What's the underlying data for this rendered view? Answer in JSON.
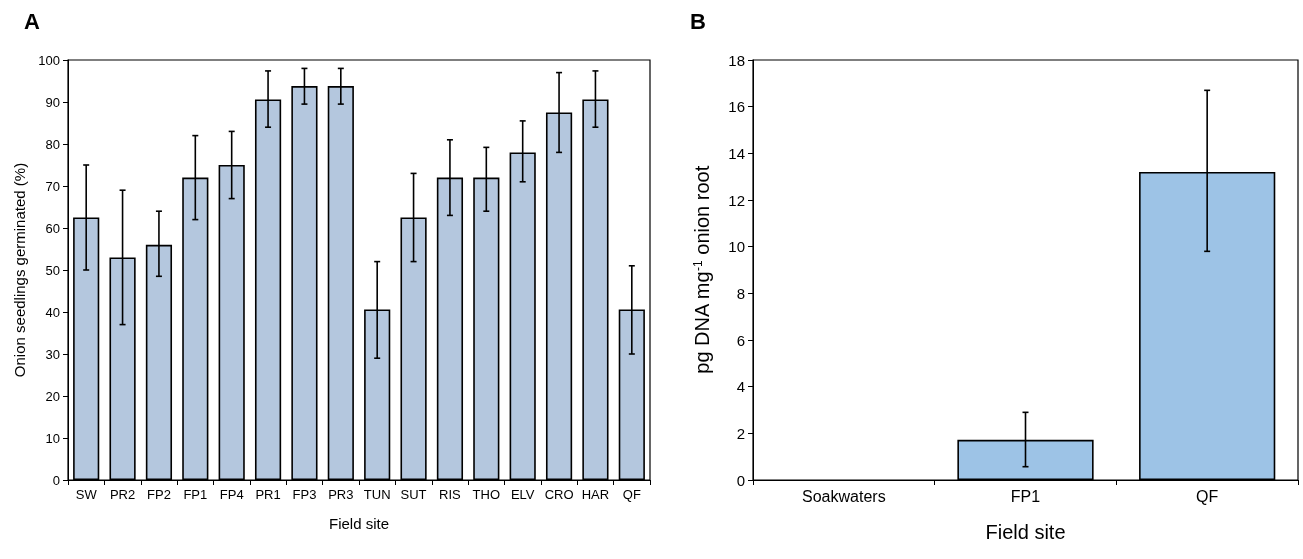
{
  "chart_data": [
    {
      "type": "bar",
      "annotations": [
        "A"
      ],
      "xlabel": "Field site",
      "ylabel": "Onion seedlings germinated (%)",
      "categories": [
        "SW",
        "PR2",
        "FP2",
        "FP1",
        "FP4",
        "PR1",
        "FP3",
        "PR3",
        "TUN",
        "SUT",
        "RIS",
        "THO",
        "ELV",
        "CRO",
        "HAR",
        "QF"
      ],
      "series": [
        {
          "color": "#b4c7de",
          "values": [
            62.5,
            53,
            56,
            72,
            75,
            90.6,
            93.8,
            93.8,
            40.6,
            62.5,
            72,
            72,
            78,
            87.5,
            90.6,
            40.6
          ],
          "errors": [
            [
              50,
              75
            ],
            [
              37,
              69
            ],
            [
              48.5,
              64
            ],
            [
              62,
              82
            ],
            [
              67,
              83
            ],
            [
              84,
              97.4
            ],
            [
              89.5,
              98
            ],
            [
              89.5,
              98
            ],
            [
              29,
              52
            ],
            [
              52,
              73
            ],
            [
              63,
              81
            ],
            [
              64,
              79.2
            ],
            [
              71,
              85.5
            ],
            [
              78,
              97
            ],
            [
              84,
              97.4
            ],
            [
              30,
              51
            ]
          ]
        }
      ],
      "ylim": [
        0,
        100
      ],
      "yticks": [
        0,
        10,
        20,
        30,
        40,
        50,
        60,
        70,
        80,
        90,
        100
      ],
      "grid": false
    },
    {
      "type": "bar",
      "annotations": [
        "B"
      ],
      "xlabel": "Field site",
      "ylabel": "pg DNA mg$^{-1}$ onion root",
      "categories": [
        "Soakwaters",
        "FP1",
        "QF"
      ],
      "series": [
        {
          "color": "#9dc3e6",
          "values": [
            0,
            1.72,
            13.2
          ],
          "errors": [
            null,
            [
              0.57,
              2.9
            ],
            [
              9.8,
              16.7
            ]
          ]
        }
      ],
      "ylim": [
        0,
        18
      ],
      "yticks": [
        0,
        2,
        4,
        6,
        8,
        10,
        12,
        14,
        16,
        18
      ],
      "grid": false
    }
  ]
}
